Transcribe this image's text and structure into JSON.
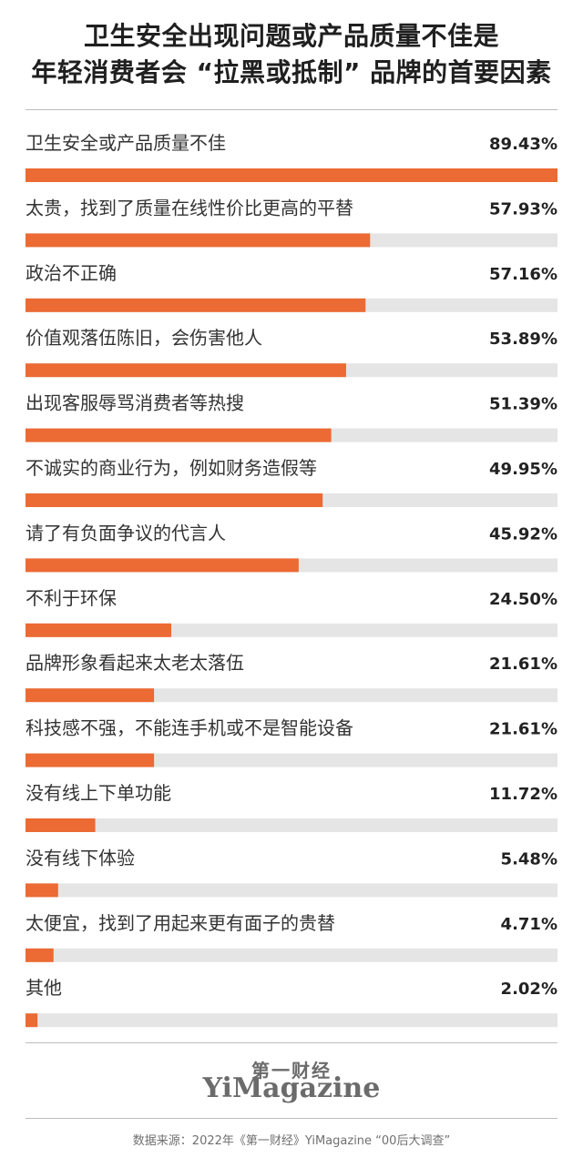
{
  "title_line1": "卫生安全出现问题或产品质量不佳是",
  "title_line2": "年轻消费者会 “拉黑或抵制” 品牌的首要因素",
  "colors": {
    "bar": "#ec6a33",
    "track": "#e5e5e5"
  },
  "chart_data": {
    "type": "bar",
    "orientation": "horizontal",
    "xlim": [
      0,
      89.43
    ],
    "categories": [
      "卫生安全或产品质量不佳",
      "太贵，找到了质量在线性价比更高的平替",
      "政治不正确",
      "价值观落伍陈旧，会伤害他人",
      "出现客服辱骂消费者等热搜",
      "不诚实的商业行为，例如财务造假等",
      "请了有负面争议的代言人",
      "不利于环保",
      "品牌形象看起来太老太落伍",
      "科技感不强，不能连手机或不是智能设备",
      "没有线上下单功能",
      "没有线下体验",
      "太便宜，找到了用起来更有面子的贵替",
      "其他"
    ],
    "values": [
      89.43,
      57.93,
      57.16,
      53.89,
      51.39,
      49.95,
      45.92,
      24.5,
      21.61,
      21.61,
      11.72,
      5.48,
      4.71,
      2.02
    ],
    "value_labels": [
      "89.43%",
      "57.93%",
      "57.16%",
      "53.89%",
      "51.39%",
      "49.95%",
      "45.92%",
      "24.50%",
      "21.61%",
      "21.61%",
      "11.72%",
      "5.48%",
      "4.71%",
      "2.02%"
    ]
  },
  "logo": {
    "cn": "第一财经",
    "en": "YiMagazine"
  },
  "source": "数据来源：2022年《第一财经》YiMagazine “00后大调查”"
}
